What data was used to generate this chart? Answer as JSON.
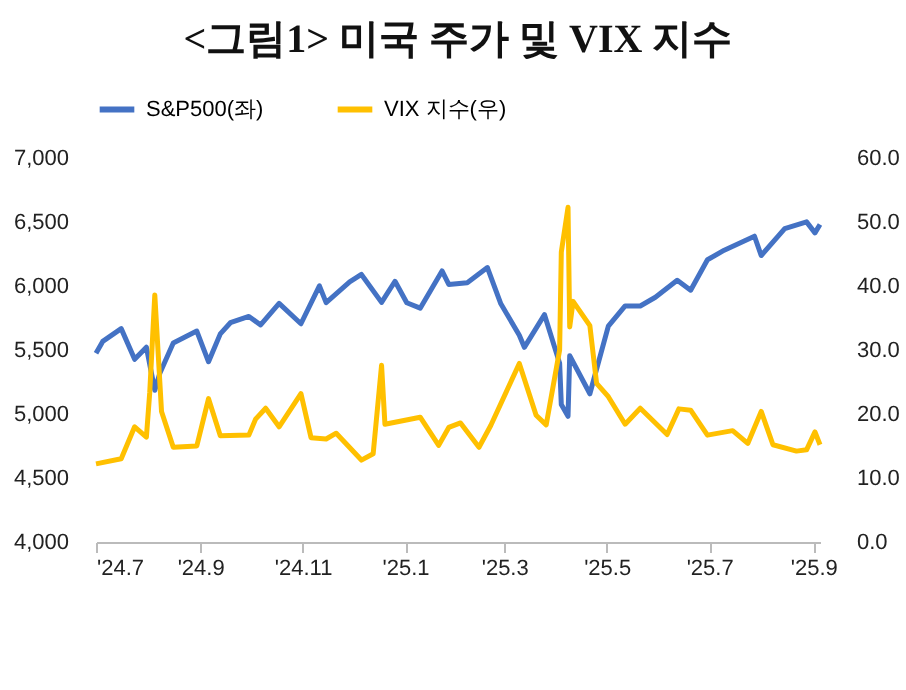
{
  "chart_data": {
    "type": "line",
    "title": "<그림1> 미국 주가 및 VIX 지수",
    "legend": "top",
    "grid": false,
    "xlim": [
      "2024-07-01",
      "2025-09-05"
    ],
    "xticks": [
      {
        "value": "2024-07",
        "label": "'24.7"
      },
      {
        "value": "2024-09",
        "label": "'24.9"
      },
      {
        "value": "2024-11",
        "label": "'24.11"
      },
      {
        "value": "2025-01",
        "label": "'25.1"
      },
      {
        "value": "2025-03",
        "label": "'25.3"
      },
      {
        "value": "2025-05",
        "label": "'25.5"
      },
      {
        "value": "2025-07",
        "label": "'25.7"
      },
      {
        "value": "2025-09",
        "label": "'25.9"
      }
    ],
    "ylim": [
      4000,
      7000
    ],
    "yticks": [
      {
        "value": 4000,
        "label": "4,000"
      },
      {
        "value": 4500,
        "label": "4,500"
      },
      {
        "value": 5000,
        "label": "5,000"
      },
      {
        "value": 5500,
        "label": "5,500"
      },
      {
        "value": 6000,
        "label": "6,000"
      },
      {
        "value": 6500,
        "label": "6,500"
      },
      {
        "value": 7000,
        "label": "7,000"
      }
    ],
    "y2lim": [
      0,
      60
    ],
    "y2ticks": [
      {
        "value": 0,
        "label": "0.0"
      },
      {
        "value": 10,
        "label": "10.0"
      },
      {
        "value": 20,
        "label": "20.0"
      },
      {
        "value": 30,
        "label": "30.0"
      },
      {
        "value": 40,
        "label": "40.0"
      },
      {
        "value": 50,
        "label": "50.0"
      },
      {
        "value": 60,
        "label": "60.0"
      }
    ],
    "series": [
      {
        "name": "S&P500(좌)",
        "color": "#4472c4",
        "x": [
          "2024-07-01",
          "2024-07-05",
          "2024-07-16",
          "2024-07-24",
          "2024-07-31",
          "2024-08-05",
          "2024-08-08",
          "2024-08-16",
          "2024-08-30",
          "2024-09-06",
          "2024-09-13",
          "2024-09-19",
          "2024-09-30",
          "2024-10-07",
          "2024-10-18",
          "2024-10-31",
          "2024-11-11",
          "2024-11-15",
          "2024-11-29",
          "2024-12-06",
          "2024-12-18",
          "2024-12-26",
          "2025-01-02",
          "2025-01-10",
          "2025-01-23",
          "2025-01-27",
          "2025-02-07",
          "2025-02-19",
          "2025-02-27",
          "2025-03-10",
          "2025-03-13",
          "2025-03-25",
          "2025-04-03",
          "2025-04-04",
          "2025-04-08",
          "2025-04-09",
          "2025-04-21",
          "2025-05-02",
          "2025-05-12",
          "2025-05-21",
          "2025-05-30",
          "2025-06-12",
          "2025-06-20",
          "2025-06-30",
          "2025-07-10",
          "2025-07-28",
          "2025-08-01",
          "2025-08-15",
          "2025-08-28",
          "2025-09-02",
          "2025-09-05"
        ],
        "values": [
          5475,
          5567,
          5667,
          5427,
          5522,
          5186,
          5319,
          5554,
          5648,
          5408,
          5626,
          5713,
          5762,
          5696,
          5864,
          5705,
          6001,
          5870,
          6032,
          6090,
          5872,
          6037,
          5869,
          5827,
          6118,
          6012,
          6026,
          6144,
          5861,
          5615,
          5521,
          5776,
          5397,
          5074,
          4982,
          5456,
          5158,
          5686,
          5844,
          5844,
          5912,
          6045,
          5967,
          6205,
          6280,
          6389,
          6238,
          6449,
          6501,
          6415,
          6481
        ]
      },
      {
        "name": "VIX 지수(우)",
        "color": "#ffc000",
        "axis": "y2",
        "x": [
          "2024-07-01",
          "2024-07-16",
          "2024-07-24",
          "2024-07-31",
          "2024-08-02",
          "2024-08-05",
          "2024-08-09",
          "2024-08-16",
          "2024-08-30",
          "2024-09-06",
          "2024-09-13",
          "2024-09-30",
          "2024-10-04",
          "2024-10-10",
          "2024-10-18",
          "2024-10-31",
          "2024-11-06",
          "2024-11-15",
          "2024-11-21",
          "2024-12-06",
          "2024-12-13",
          "2024-12-18",
          "2024-12-20",
          "2025-01-10",
          "2025-01-21",
          "2025-01-27",
          "2025-02-03",
          "2025-02-14",
          "2025-02-21",
          "2025-03-10",
          "2025-03-20",
          "2025-03-26",
          "2025-04-03",
          "2025-04-04",
          "2025-04-08",
          "2025-04-09",
          "2025-04-11",
          "2025-04-21",
          "2025-04-25",
          "2025-05-02",
          "2025-05-12",
          "2025-05-21",
          "2025-06-06",
          "2025-06-13",
          "2025-06-20",
          "2025-06-30",
          "2025-07-15",
          "2025-07-24",
          "2025-08-01",
          "2025-08-08",
          "2025-08-22",
          "2025-08-28",
          "2025-09-02",
          "2025-09-05"
        ],
        "values": [
          12.2,
          13,
          18,
          16.4,
          23.4,
          38.6,
          20.4,
          14.8,
          15,
          22.4,
          16.6,
          16.7,
          19.2,
          20.9,
          18,
          23.2,
          16.3,
          16.1,
          17,
          12.8,
          13.8,
          27.6,
          18.4,
          19.5,
          15.1,
          17.9,
          18.6,
          14.8,
          18.2,
          27.9,
          19.8,
          18.3,
          30,
          45.3,
          52.3,
          33.6,
          37.6,
          33.8,
          24.8,
          22.7,
          18.4,
          20.9,
          16.8,
          20.8,
          20.6,
          16.7,
          17.4,
          15.4,
          20.4,
          15.2,
          14.2,
          14.4,
          17.2,
          15.2
        ]
      }
    ]
  }
}
